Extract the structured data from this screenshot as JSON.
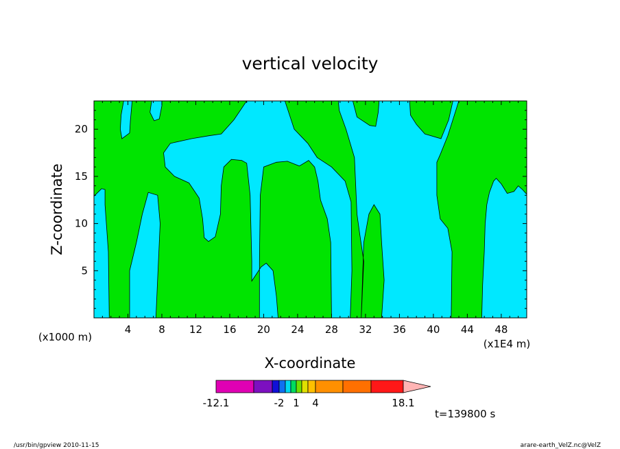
{
  "chart_data": {
    "type": "heatmap",
    "title": "vertical velocity",
    "xlabel": "X-coordinate",
    "ylabel": "Z-coordinate",
    "xunit_left": "(x1000 m)",
    "xunit_right": "(x1E4 m)",
    "xlim": [
      0,
      51
    ],
    "ylim": [
      0,
      23
    ],
    "xticks": [
      4,
      8,
      12,
      16,
      20,
      24,
      28,
      32,
      36,
      40,
      44,
      48
    ],
    "yticks": [
      5,
      10,
      15,
      20
    ],
    "fill_colors": {
      "below_zero": "#00e8ff",
      "above_zero": "#00e400"
    },
    "positive_regions": [
      [
        [
          0,
          23
        ],
        [
          3.5,
          23
        ],
        [
          3.2,
          21.5
        ],
        [
          3.1,
          20
        ],
        [
          3.3,
          19
        ],
        [
          4.2,
          19.6
        ],
        [
          4.3,
          21
        ],
        [
          4.5,
          23
        ],
        [
          6.8,
          23
        ],
        [
          6.6,
          21.8
        ],
        [
          7.1,
          20.9
        ],
        [
          7.7,
          21.1
        ],
        [
          8,
          22.5
        ],
        [
          8,
          23
        ],
        [
          18,
          23
        ],
        [
          16.5,
          21
        ],
        [
          15,
          19.5
        ],
        [
          13.5,
          19.3
        ],
        [
          11.5,
          19
        ],
        [
          9,
          18.5
        ],
        [
          8.2,
          17.5
        ],
        [
          8.4,
          16
        ],
        [
          9.5,
          15
        ],
        [
          11.2,
          14.3
        ],
        [
          12.4,
          12.7
        ],
        [
          12.8,
          10.5
        ],
        [
          13,
          8.5
        ],
        [
          13.5,
          8.1
        ],
        [
          14.3,
          8.6
        ],
        [
          14.9,
          11
        ],
        [
          15,
          14
        ],
        [
          15.3,
          16
        ],
        [
          16.2,
          16.8
        ],
        [
          17.4,
          16.7
        ],
        [
          18,
          16.4
        ],
        [
          18.4,
          13
        ],
        [
          18.6,
          6
        ],
        [
          18.6,
          3.9
        ],
        [
          19.7,
          5.4
        ],
        [
          20.3,
          5.8
        ],
        [
          21.1,
          5
        ],
        [
          21.5,
          2.3
        ],
        [
          21.7,
          0
        ],
        [
          28,
          0
        ],
        [
          27.9,
          8
        ],
        [
          27.5,
          10.5
        ],
        [
          26.7,
          12.5
        ],
        [
          26.4,
          14.5
        ],
        [
          26,
          16
        ],
        [
          25.3,
          16.7
        ],
        [
          24.2,
          16.1
        ],
        [
          22.8,
          16.6
        ],
        [
          21.5,
          16.5
        ],
        [
          20,
          16
        ],
        [
          19.6,
          13
        ],
        [
          19.5,
          6
        ],
        [
          19.5,
          0
        ],
        [
          7.3,
          0
        ],
        [
          7.6,
          6
        ],
        [
          7.8,
          10
        ],
        [
          7.5,
          13
        ],
        [
          6.4,
          13.3
        ],
        [
          5.7,
          11
        ],
        [
          5,
          8
        ],
        [
          4.2,
          5
        ],
        [
          4.2,
          0
        ],
        [
          1.8,
          0
        ],
        [
          1.7,
          7
        ],
        [
          1.3,
          12
        ],
        [
          1.3,
          13.6
        ],
        [
          0.9,
          13.7
        ],
        [
          0,
          12.9
        ]
      ],
      [
        [
          22.5,
          23
        ],
        [
          23.6,
          20
        ],
        [
          25.2,
          18.5
        ],
        [
          26.3,
          17
        ],
        [
          28,
          16
        ],
        [
          29.6,
          14.5
        ],
        [
          30.3,
          12.3
        ],
        [
          30.4,
          5
        ],
        [
          30.2,
          0
        ],
        [
          33.9,
          0
        ],
        [
          34.2,
          4
        ],
        [
          33.9,
          8
        ],
        [
          33.7,
          11
        ],
        [
          33,
          12
        ],
        [
          32.4,
          11
        ],
        [
          31.8,
          8
        ],
        [
          31.5,
          0
        ],
        [
          31.8,
          6
        ],
        [
          31.3,
          9
        ],
        [
          31,
          11
        ],
        [
          30.7,
          17
        ],
        [
          29.7,
          20
        ],
        [
          28.9,
          22
        ],
        [
          28.8,
          23
        ]
      ],
      [
        [
          30.5,
          23
        ],
        [
          31,
          21.3
        ],
        [
          32.5,
          20.4
        ],
        [
          33.2,
          20.3
        ],
        [
          33.5,
          21.8
        ],
        [
          33.6,
          23
        ]
      ],
      [
        [
          37.2,
          23
        ],
        [
          37.3,
          21.5
        ],
        [
          38,
          20.5
        ],
        [
          39,
          19.5
        ],
        [
          40.9,
          19
        ],
        [
          41.8,
          21
        ],
        [
          42.3,
          23
        ]
      ],
      [
        [
          43,
          23
        ],
        [
          41.7,
          19.3
        ],
        [
          40.8,
          17.3
        ],
        [
          40.4,
          16.5
        ],
        [
          40.4,
          13
        ],
        [
          40.8,
          10.5
        ],
        [
          41.7,
          9.5
        ],
        [
          42.2,
          7
        ],
        [
          42.1,
          0
        ],
        [
          45.7,
          0
        ],
        [
          45.8,
          3.5
        ],
        [
          46,
          7
        ],
        [
          46.1,
          10
        ],
        [
          46.3,
          12
        ],
        [
          46.6,
          13.3
        ],
        [
          47.1,
          14.5
        ],
        [
          47.4,
          14.8
        ],
        [
          48,
          14.2
        ],
        [
          48.7,
          13.2
        ],
        [
          49.5,
          13.4
        ],
        [
          50,
          14
        ],
        [
          50.5,
          13.6
        ],
        [
          51,
          13.1
        ],
        [
          51,
          23
        ]
      ]
    ],
    "colorbar": {
      "min": -12.1,
      "max": 18.1,
      "labels": [
        "-12.1",
        "-2",
        "1",
        "4",
        "18.1"
      ],
      "colors": [
        "#e000b4",
        "#7c10c0",
        "#1010d8",
        "#1070f0",
        "#00d8f0",
        "#00dc60",
        "#70e000",
        "#e0e000",
        "#ffc000",
        "#ff9000",
        "#ff7000",
        "#ff1818",
        "#ff8080",
        "#ffb4b4"
      ]
    }
  },
  "time_label": "t=139800 s",
  "footer": {
    "left": "/usr/bin/gpview   2010-11-15",
    "right": "arare-earth_VelZ.nc@VelZ"
  }
}
